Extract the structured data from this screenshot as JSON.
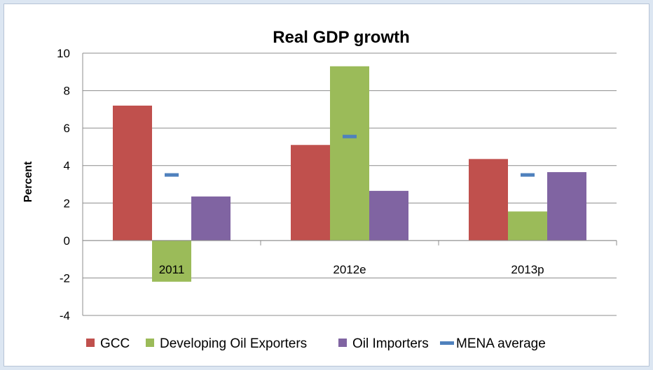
{
  "chart_data": {
    "type": "bar",
    "title": "Real GDP growth",
    "xlabel": "",
    "ylabel": "Percent",
    "ylim": [
      -4,
      10
    ],
    "yticks": [
      -4,
      -2,
      0,
      2,
      4,
      6,
      8,
      10
    ],
    "grid": true,
    "legend_position": "bottom",
    "categories": [
      "2011",
      "2012e",
      "2013p"
    ],
    "series": [
      {
        "name": "GCC",
        "color": "#c0504d",
        "kind": "bar",
        "values": [
          7.2,
          5.1,
          4.35
        ]
      },
      {
        "name": "Developing Oil Exporters",
        "color": "#9bbb59",
        "kind": "bar",
        "values": [
          -2.2,
          9.3,
          1.55
        ]
      },
      {
        "name": "Oil Importers",
        "color": "#8064a2",
        "kind": "bar",
        "values": [
          2.35,
          2.65,
          3.65
        ]
      },
      {
        "name": "MENA average",
        "color": "#4f81bd",
        "kind": "marker",
        "values": [
          3.5,
          5.55,
          3.5
        ]
      }
    ]
  }
}
